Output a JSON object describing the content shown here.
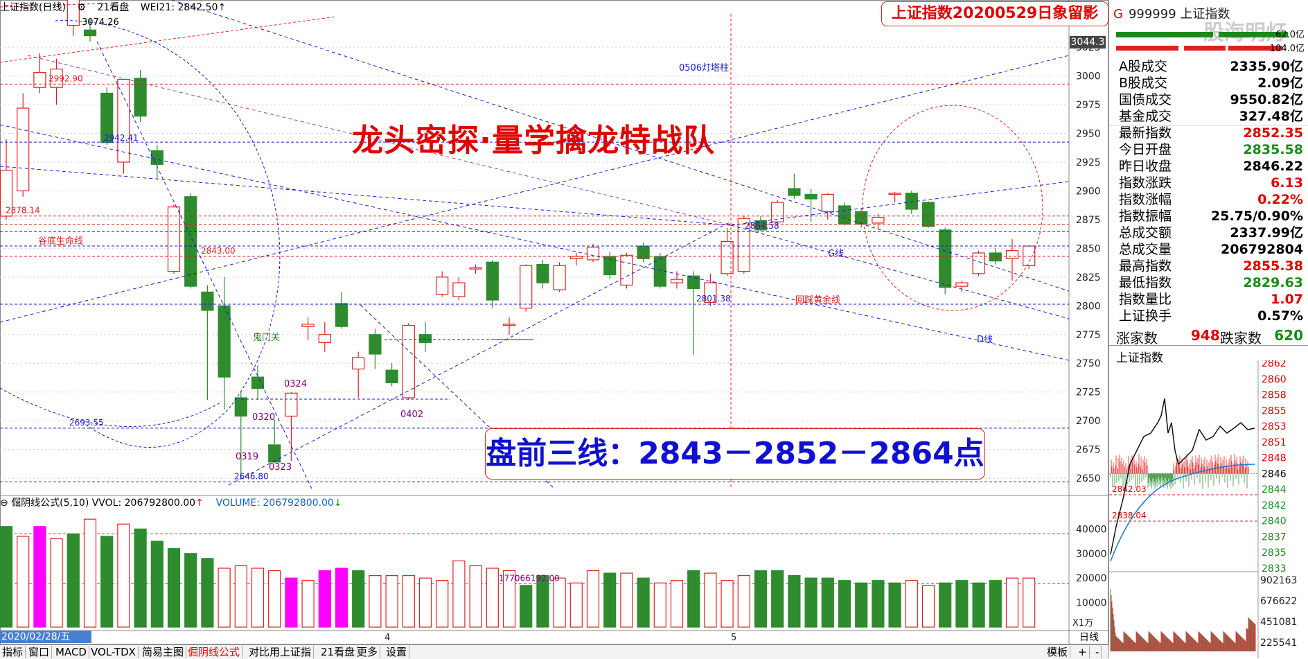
{
  "window": {
    "title_strip": {
      "name": "上证指数(日线)",
      "setting": "21看盘",
      "indicator": "WEI21: 2842.50↑"
    },
    "banner": "上证指数20200529日象留影",
    "heading": "龙头密探·量学擒龙特战队",
    "premarket_lines": "盘前三线：2843－2852－2864点",
    "current_price_tag": "3044.3"
  },
  "chart_data": [
    {
      "type": "candlestick",
      "title": "上证指数(日线)",
      "y_ticks": [
        3025,
        3000,
        2975,
        2950,
        2925,
        2900,
        2875,
        2850,
        2825,
        2800,
        2775,
        2750,
        2725,
        2700,
        2675,
        2650
      ],
      "ylim": [
        2641,
        3048
      ],
      "x_labels": [
        "4",
        "5"
      ],
      "candles": [
        {
          "o": 2878,
          "h": 2945,
          "l": 2875,
          "c": 2918
        },
        {
          "o": 2900,
          "h": 2985,
          "l": 2895,
          "c": 2972
        },
        {
          "o": 2990,
          "h": 3020,
          "l": 2985,
          "c": 3003
        },
        {
          "o": 2990,
          "h": 3015,
          "l": 2975,
          "c": 3006
        },
        {
          "o": 3044,
          "h": 3074,
          "l": 3035,
          "c": 3068
        },
        {
          "o": 3040,
          "h": 3050,
          "l": 3030,
          "c": 3035
        },
        {
          "o": 2985,
          "h": 2990,
          "l": 2940,
          "c": 2942
        },
        {
          "o": 2925,
          "h": 2995,
          "l": 2915,
          "c": 2997
        },
        {
          "o": 2998,
          "h": 3005,
          "l": 2960,
          "c": 2965
        },
        {
          "o": 2935,
          "h": 2940,
          "l": 2910,
          "c": 2923
        },
        {
          "o": 2830,
          "h": 2888,
          "l": 2828,
          "c": 2886
        },
        {
          "o": 2895,
          "h": 2898,
          "l": 2815,
          "c": 2817
        },
        {
          "o": 2812,
          "h": 2818,
          "l": 2718,
          "c": 2796
        },
        {
          "o": 2800,
          "h": 2825,
          "l": 2710,
          "c": 2738
        },
        {
          "o": 2720,
          "h": 2725,
          "l": 2650,
          "c": 2704
        },
        {
          "o": 2738,
          "h": 2748,
          "l": 2718,
          "c": 2728
        },
        {
          "o": 2679,
          "h": 2701,
          "l": 2663,
          "c": 2664
        },
        {
          "o": 2704,
          "h": 2725,
          "l": 2665,
          "c": 2724
        },
        {
          "o": 2782,
          "h": 2790,
          "l": 2770,
          "c": 2784
        },
        {
          "o": 2768,
          "h": 2786,
          "l": 2760,
          "c": 2775
        },
        {
          "o": 2802,
          "h": 2812,
          "l": 2780,
          "c": 2782
        },
        {
          "o": 2745,
          "h": 2760,
          "l": 2720,
          "c": 2755
        },
        {
          "o": 2775,
          "h": 2780,
          "l": 2745,
          "c": 2758
        },
        {
          "o": 2744,
          "h": 2750,
          "l": 2730,
          "c": 2733
        },
        {
          "o": 2720,
          "h": 2785,
          "l": 2718,
          "c": 2783
        },
        {
          "o": 2775,
          "h": 2786,
          "l": 2760,
          "c": 2768
        },
        {
          "o": 2810,
          "h": 2830,
          "l": 2808,
          "c": 2825
        },
        {
          "o": 2808,
          "h": 2825,
          "l": 2805,
          "c": 2820
        },
        {
          "o": 2832,
          "h": 2836,
          "l": 2828,
          "c": 2833
        },
        {
          "o": 2838,
          "h": 2840,
          "l": 2798,
          "c": 2805
        },
        {
          "o": 2783,
          "h": 2790,
          "l": 2775,
          "c": 2784
        },
        {
          "o": 2798,
          "h": 2836,
          "l": 2795,
          "c": 2835
        },
        {
          "o": 2836,
          "h": 2840,
          "l": 2815,
          "c": 2820
        },
        {
          "o": 2814,
          "h": 2838,
          "l": 2812,
          "c": 2835
        },
        {
          "o": 2841,
          "h": 2846,
          "l": 2835,
          "c": 2843
        },
        {
          "o": 2840,
          "h": 2854,
          "l": 2838,
          "c": 2851
        },
        {
          "o": 2843,
          "h": 2847,
          "l": 2823,
          "c": 2827
        },
        {
          "o": 2818,
          "h": 2846,
          "l": 2815,
          "c": 2844
        },
        {
          "o": 2852,
          "h": 2855,
          "l": 2838,
          "c": 2841
        },
        {
          "o": 2843,
          "h": 2846,
          "l": 2815,
          "c": 2817
        },
        {
          "o": 2820,
          "h": 2830,
          "l": 2815,
          "c": 2823
        },
        {
          "o": 2826,
          "h": 2830,
          "l": 2757,
          "c": 2815
        },
        {
          "o": 2803,
          "h": 2828,
          "l": 2800,
          "c": 2820
        },
        {
          "o": 2828,
          "h": 2868,
          "l": 2826,
          "c": 2856
        },
        {
          "o": 2830,
          "h": 2878,
          "l": 2828,
          "c": 2876
        },
        {
          "o": 2874,
          "h": 2878,
          "l": 2865,
          "c": 2866
        },
        {
          "o": 2873,
          "h": 2892,
          "l": 2870,
          "c": 2890
        },
        {
          "o": 2902,
          "h": 2915,
          "l": 2893,
          "c": 2896
        },
        {
          "o": 2897,
          "h": 2902,
          "l": 2873,
          "c": 2893
        },
        {
          "o": 2882,
          "h": 2898,
          "l": 2875,
          "c": 2897
        },
        {
          "o": 2887,
          "h": 2890,
          "l": 2870,
          "c": 2871
        },
        {
          "o": 2882,
          "h": 2885,
          "l": 2868,
          "c": 2871
        },
        {
          "o": 2872,
          "h": 2880,
          "l": 2867,
          "c": 2877
        },
        {
          "o": 2897,
          "h": 2899,
          "l": 2890,
          "c": 2898
        },
        {
          "o": 2898,
          "h": 2900,
          "l": 2880,
          "c": 2884
        },
        {
          "o": 2890,
          "h": 2891,
          "l": 2868,
          "c": 2869
        },
        {
          "o": 2866,
          "h": 2868,
          "l": 2810,
          "c": 2816
        },
        {
          "o": 2817,
          "h": 2822,
          "l": 2812,
          "c": 2820
        },
        {
          "o": 2828,
          "h": 2848,
          "l": 2826,
          "c": 2846
        },
        {
          "o": 2846,
          "h": 2850,
          "l": 2836,
          "c": 2839
        },
        {
          "o": 2841,
          "h": 2858,
          "l": 2822,
          "c": 2848
        },
        {
          "o": 2835,
          "h": 2852,
          "l": 2832,
          "c": 2852
        }
      ],
      "h_lines": [
        {
          "y": 2992.9,
          "label": "2992.90"
        },
        {
          "y": 2942.41,
          "label": "2942.41"
        },
        {
          "y": 2878.14,
          "label": "2878.14"
        },
        {
          "y": 2843.0,
          "label": "2843.00"
        },
        {
          "y": 2801.38,
          "label": "2801.38"
        },
        {
          "y": 2693.55,
          "label": "2693.55"
        },
        {
          "y": 2646.8,
          "label": "2646.80"
        },
        {
          "y": 2864.58,
          "label": "2864.58"
        },
        {
          "y": 2852,
          "label": ""
        },
        {
          "y": 2871,
          "label": ""
        }
      ],
      "annotations": [
        "谷底生命线",
        "鬼门关",
        "回踩黄金线",
        "0506灯塔柱",
        "G线",
        "D线",
        "0319",
        "0320",
        "0323",
        "0324",
        "0402",
        "3074.26"
      ]
    },
    {
      "type": "bar",
      "title": "倔阴线公式(5,10) VVOL: 206792800.00",
      "legend": "VOLUME: 206792800.00",
      "y_ticks": [
        40000,
        30000,
        20000,
        10000
      ],
      "unit": "X1万",
      "ylim": [
        0,
        48000
      ],
      "annotation": "177066192.00",
      "values": [
        41000,
        37000,
        41000,
        36000,
        38000,
        44000,
        37000,
        42000,
        40000,
        35000,
        32000,
        30000,
        28000,
        24000,
        25000,
        24000,
        23000,
        20000,
        19000,
        23000,
        24000,
        23000,
        21000,
        21000,
        21000,
        20000,
        19000,
        27000,
        25000,
        24000,
        23000,
        17000,
        21000,
        20000,
        18000,
        23000,
        22000,
        22000,
        20000,
        18000,
        19000,
        23000,
        22000,
        19000,
        21000,
        23000,
        23000,
        21000,
        20000,
        20000,
        19000,
        18000,
        19000,
        18000,
        19000,
        17000,
        18000,
        19000,
        18000,
        19000,
        20000,
        20000
      ],
      "types": [
        "g",
        "r",
        "m",
        "r",
        "g",
        "r",
        "g",
        "r",
        "g",
        "g",
        "g",
        "g",
        "g",
        "r",
        "r",
        "r",
        "r",
        "m",
        "r",
        "m",
        "m",
        "g",
        "r",
        "r",
        "r",
        "r",
        "r",
        "r",
        "r",
        "r",
        "r",
        "g",
        "g",
        "r",
        "r",
        "r",
        "g",
        "r",
        "g",
        "r",
        "r",
        "g",
        "r",
        "r",
        "r",
        "g",
        "g",
        "g",
        "g",
        "g",
        "g",
        "g",
        "g",
        "g",
        "r",
        "r",
        "g",
        "g",
        "g",
        "g",
        "r",
        "r"
      ]
    },
    {
      "type": "line",
      "title": "上证指数",
      "y_ticks": [
        2862,
        2860,
        2858,
        2855,
        2853,
        2851,
        2848,
        2846,
        2844,
        2842,
        2840,
        2837,
        2835,
        2833
      ],
      "vol_ticks": [
        "902163",
        "676622",
        "451081",
        "225541"
      ],
      "ref_labels": [
        "2842.03",
        "2838.04"
      ]
    }
  ],
  "date_flag": "2020/02/28/五",
  "right_panel": {
    "code_color": "G",
    "code": "999999 上证指数",
    "watermark": "股海明灯",
    "top_values": [
      "62.0亿",
      "104.0亿"
    ],
    "rows": [
      {
        "label": "A股成交",
        "value": "2335.90亿",
        "color": "#000000"
      },
      {
        "label": "B股成交",
        "value": "2.09亿",
        "color": "#000000"
      },
      {
        "label": "国债成交",
        "value": "9550.82亿",
        "color": "#000000"
      },
      {
        "label": "基金成交",
        "value": "327.48亿",
        "color": "#000000"
      },
      {
        "label": "最新指数",
        "value": "2852.35",
        "color": "#e00000"
      },
      {
        "label": "今日开盘",
        "value": "2835.58",
        "color": "#1a8a1a"
      },
      {
        "label": "昨日收盘",
        "value": "2846.22",
        "color": "#000000"
      },
      {
        "label": "指数涨跌",
        "value": "6.13",
        "color": "#e00000"
      },
      {
        "label": "指数涨幅",
        "value": "0.22%",
        "color": "#e00000"
      },
      {
        "label": "指数振幅",
        "value": "25.75/0.90%",
        "color": "#000000"
      },
      {
        "label": "总成交额",
        "value": "2337.99亿",
        "color": "#000000"
      },
      {
        "label": "总成交量",
        "value": "206792804",
        "color": "#000000"
      },
      {
        "label": "最高指数",
        "value": "2855.38",
        "color": "#e00000"
      },
      {
        "label": "最低指数",
        "value": "2829.63",
        "color": "#1a8a1a"
      },
      {
        "label": "指数量比",
        "value": "1.07",
        "color": "#e00000"
      },
      {
        "label": "上证换手",
        "value": "0.57%",
        "color": "#000000"
      }
    ],
    "adv_label": "涨家数",
    "adv_value": "948",
    "dec_label": "跌家数",
    "dec_value": "620",
    "mini_title": "上证指数"
  },
  "tabs": [
    "指标",
    "窗口",
    "MACD",
    "VOL-TDX",
    "简易主图",
    "倔阴线公式",
    "对比用上证指",
    "21看盘",
    "更多",
    "设置"
  ],
  "active_tab": "倔阴线公式",
  "bottom_right": [
    "模板",
    "+",
    "-"
  ],
  "bottom_period": "日线"
}
